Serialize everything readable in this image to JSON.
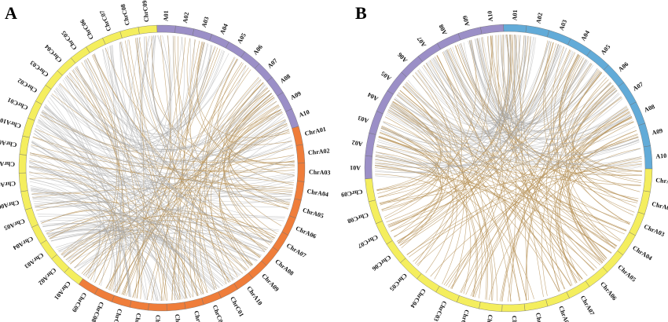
{
  "figure": {
    "panels": [
      {
        "letter": "A",
        "segments": [
          {
            "label": "A01",
            "group": "purple"
          },
          {
            "label": "A02",
            "group": "purple"
          },
          {
            "label": "A03",
            "group": "purple"
          },
          {
            "label": "A04",
            "group": "purple"
          },
          {
            "label": "A05",
            "group": "purple"
          },
          {
            "label": "A06",
            "group": "purple"
          },
          {
            "label": "A07",
            "group": "purple"
          },
          {
            "label": "A08",
            "group": "purple"
          },
          {
            "label": "A09",
            "group": "purple"
          },
          {
            "label": "A10",
            "group": "purple"
          },
          {
            "label": "ChrA01",
            "group": "orange"
          },
          {
            "label": "ChrA02",
            "group": "orange"
          },
          {
            "label": "ChrA03",
            "group": "orange"
          },
          {
            "label": "ChrA04",
            "group": "orange"
          },
          {
            "label": "ChrA05",
            "group": "orange"
          },
          {
            "label": "ChrA06",
            "group": "orange"
          },
          {
            "label": "ChrA07",
            "group": "orange"
          },
          {
            "label": "ChrA08",
            "group": "orange"
          },
          {
            "label": "ChrA09",
            "group": "orange"
          },
          {
            "label": "ChrA10",
            "group": "orange"
          },
          {
            "label": "ChrC01",
            "group": "orange"
          },
          {
            "label": "ChrC02",
            "group": "orange"
          },
          {
            "label": "ChrC03",
            "group": "orange"
          },
          {
            "label": "ChrC04",
            "group": "orange"
          },
          {
            "label": "ChrC05",
            "group": "orange"
          },
          {
            "label": "ChrC06",
            "group": "orange"
          },
          {
            "label": "ChrC07",
            "group": "orange"
          },
          {
            "label": "ChrC08",
            "group": "orange"
          },
          {
            "label": "ChrC09",
            "group": "orange"
          },
          {
            "label": "ChrA01",
            "group": "yellow"
          },
          {
            "label": "ChrA02",
            "group": "yellow"
          },
          {
            "label": "ChrA03",
            "group": "yellow"
          },
          {
            "label": "ChrA04",
            "group": "yellow"
          },
          {
            "label": "ChrA05",
            "group": "yellow"
          },
          {
            "label": "ChrA06",
            "group": "yellow"
          },
          {
            "label": "ChrA07",
            "group": "yellow"
          },
          {
            "label": "ChrA08",
            "group": "yellow"
          },
          {
            "label": "ChrA09",
            "group": "yellow"
          },
          {
            "label": "ChrA10",
            "group": "yellow"
          },
          {
            "label": "ChrC01",
            "group": "yellow"
          },
          {
            "label": "ChrC02",
            "group": "yellow"
          },
          {
            "label": "ChrC03",
            "group": "yellow"
          },
          {
            "label": "ChrC04",
            "group": "yellow"
          },
          {
            "label": "ChrC05",
            "group": "yellow"
          },
          {
            "label": "ChrC06",
            "group": "yellow"
          },
          {
            "label": "ChrC07",
            "group": "yellow"
          },
          {
            "label": "ChrC08",
            "group": "yellow"
          },
          {
            "label": "ChrC09",
            "group": "yellow"
          }
        ]
      },
      {
        "letter": "B",
        "segments": [
          {
            "label": "A01",
            "group": "blue"
          },
          {
            "label": "A02",
            "group": "blue"
          },
          {
            "label": "A03",
            "group": "blue"
          },
          {
            "label": "A04",
            "group": "blue"
          },
          {
            "label": "A05",
            "group": "blue"
          },
          {
            "label": "A06",
            "group": "blue"
          },
          {
            "label": "A07",
            "group": "blue"
          },
          {
            "label": "A08",
            "group": "blue"
          },
          {
            "label": "A09",
            "group": "blue"
          },
          {
            "label": "A10",
            "group": "blue"
          },
          {
            "label": "ChrA01",
            "group": "yellow"
          },
          {
            "label": "ChrA02",
            "group": "yellow"
          },
          {
            "label": "ChrA03",
            "group": "yellow"
          },
          {
            "label": "ChrA04",
            "group": "yellow"
          },
          {
            "label": "ChrA05",
            "group": "yellow"
          },
          {
            "label": "ChrA06",
            "group": "yellow"
          },
          {
            "label": "ChrA07",
            "group": "yellow"
          },
          {
            "label": "ChrA08",
            "group": "yellow"
          },
          {
            "label": "ChrA09",
            "group": "yellow"
          },
          {
            "label": "ChrA10",
            "group": "yellow"
          },
          {
            "label": "ChrC01",
            "group": "yellow"
          },
          {
            "label": "ChrC02",
            "group": "yellow"
          },
          {
            "label": "ChrC03",
            "group": "yellow"
          },
          {
            "label": "ChrC04",
            "group": "yellow"
          },
          {
            "label": "ChrC05",
            "group": "yellow"
          },
          {
            "label": "ChrC06",
            "group": "yellow"
          },
          {
            "label": "ChrC07",
            "group": "yellow"
          },
          {
            "label": "ChrC08",
            "group": "yellow"
          },
          {
            "label": "ChrC09",
            "group": "yellow"
          },
          {
            "label": "A01",
            "group": "purple"
          },
          {
            "label": "A02",
            "group": "purple"
          },
          {
            "label": "A03",
            "group": "purple"
          },
          {
            "label": "A04",
            "group": "purple"
          },
          {
            "label": "A05",
            "group": "purple"
          },
          {
            "label": "A06",
            "group": "purple"
          },
          {
            "label": "A07",
            "group": "purple"
          },
          {
            "label": "A08",
            "group": "purple"
          },
          {
            "label": "A09",
            "group": "purple"
          },
          {
            "label": "A10",
            "group": "purple"
          }
        ]
      }
    ]
  },
  "colors": {
    "purple": "#9b8fc7",
    "orange": "#ef7d3a",
    "yellow": "#f4ee5e",
    "blue": "#62abd8",
    "link_gold": "#b8945a",
    "link_gray": "#a6a6a6"
  }
}
